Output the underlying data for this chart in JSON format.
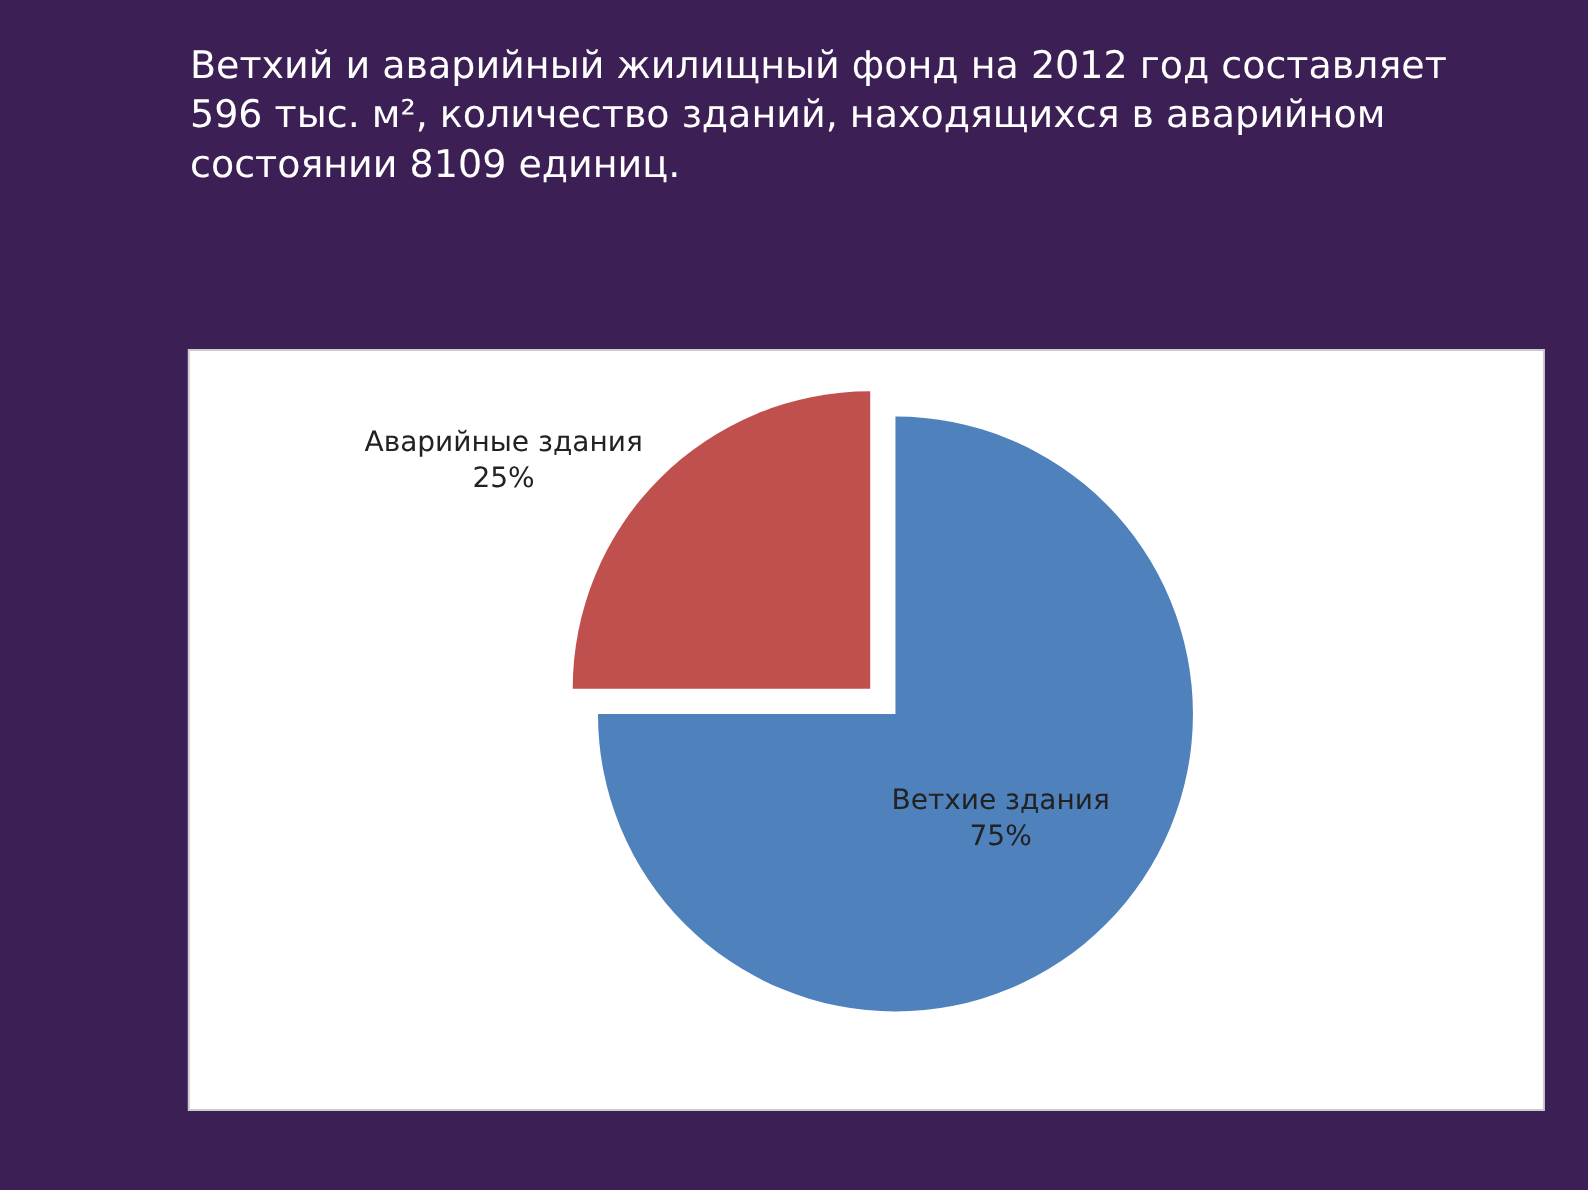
{
  "chart_data": {
    "type": "pie",
    "title": "Ветхий и аварийный жилищный фонд на 2012 год составляет 596 тыс. м², количество зданий, находящихся в аварийном состоянии 8109 единиц.",
    "categories": [
      "Ветхие здания",
      "Аварийные здания"
    ],
    "values": [
      75,
      25
    ],
    "colors": [
      "#4f81bd",
      "#c0504d"
    ],
    "value_labels": [
      "75%",
      "25%"
    ],
    "legend": false
  }
}
